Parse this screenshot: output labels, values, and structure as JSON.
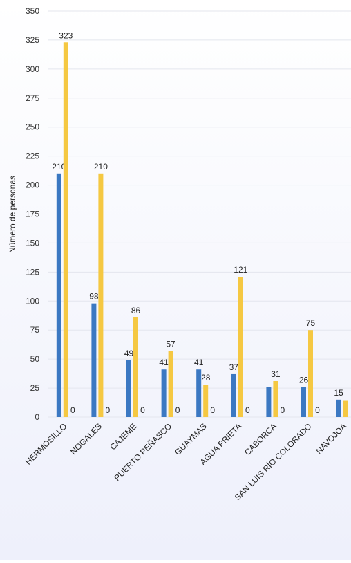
{
  "chart_data": {
    "type": "bar",
    "y_label": "Número de personas",
    "categories": [
      "HERMOSILLO",
      "NOGALES",
      "CAJEME",
      "PUERTO PEÑASCO",
      "GUAYMAS",
      "AGUA PRIETA",
      "CABORCA",
      "SAN LUIS RÍO COLORADO",
      "NAVOJOA"
    ],
    "series": [
      {
        "color": "#3b78c2",
        "values": [
          210,
          98,
          49,
          41,
          41,
          37,
          26,
          26,
          15
        ],
        "value_labels": [
          "210",
          "98",
          "49",
          "41",
          "41",
          "37",
          null,
          "26",
          "15"
        ]
      },
      {
        "color": "#f5c842",
        "values": [
          323,
          210,
          86,
          57,
          28,
          121,
          31,
          75,
          14
        ],
        "value_labels": [
          "323",
          "210",
          "86",
          "57",
          "28",
          "121",
          "31",
          "75",
          null
        ]
      },
      {
        "color": "#9aa0a6",
        "values": [
          0,
          0,
          0,
          0,
          0,
          0,
          0,
          0,
          null
        ]
      }
    ],
    "ylim": [
      0,
      350
    ],
    "yticks": [
      0,
      25,
      50,
      75,
      100,
      125,
      150,
      175,
      200,
      225,
      250,
      275,
      300,
      325,
      350
    ],
    "grid": true
  }
}
